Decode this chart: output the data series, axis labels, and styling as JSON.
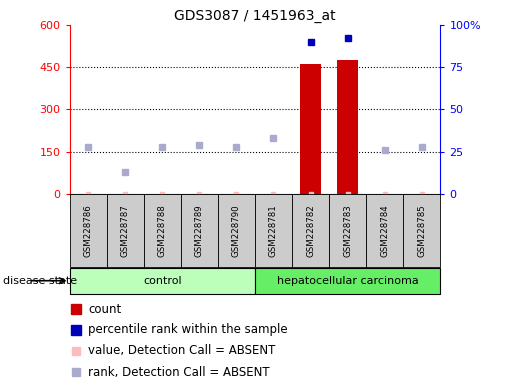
{
  "title": "GDS3087 / 1451963_at",
  "samples": [
    "GSM228786",
    "GSM228787",
    "GSM228788",
    "GSM228789",
    "GSM228790",
    "GSM228781",
    "GSM228782",
    "GSM228783",
    "GSM228784",
    "GSM228785"
  ],
  "bar_values": [
    0,
    0,
    0,
    0,
    0,
    0,
    460,
    475,
    0,
    0
  ],
  "rank_values": [
    28,
    13,
    28,
    29,
    28,
    33,
    90,
    92,
    26,
    28
  ],
  "absent_mask": [
    true,
    true,
    true,
    true,
    true,
    true,
    false,
    false,
    true,
    true
  ],
  "pink_values": [
    1,
    1,
    1,
    1,
    1,
    1,
    1,
    1,
    1,
    1
  ],
  "ylim_left": [
    0,
    600
  ],
  "ylim_right": [
    0,
    100
  ],
  "yticks_left": [
    0,
    150,
    300,
    450,
    600
  ],
  "yticks_right": [
    0,
    25,
    50,
    75,
    100
  ],
  "bar_color": "#cc0000",
  "blue_color": "#0000bb",
  "pink_color": "#ffbbbb",
  "light_blue_color": "#aaaacc",
  "control_bg": "#bbffbb",
  "carcinoma_bg": "#66ee66",
  "sample_bg": "#cccccc",
  "title_fontsize": 10,
  "axis_fontsize": 8,
  "legend_fontsize": 8.5,
  "label_fontsize": 8
}
